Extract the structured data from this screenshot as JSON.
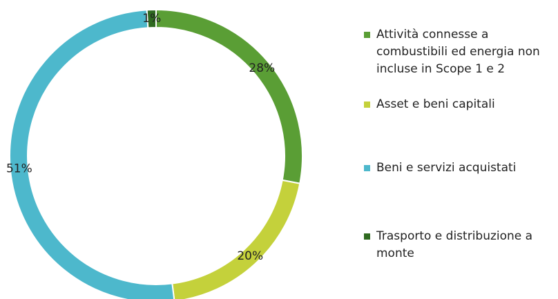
{
  "chart_data": {
    "type": "donut",
    "categories": [
      "Attività connesse a combustibili ed energia non incluse in Scope 1 e 2",
      "Asset e beni capitali",
      "Beni e servizi acquistati",
      "Trasporto e distribuzione a monte"
    ],
    "values": [
      28,
      20,
      51,
      1
    ],
    "value_labels": [
      "28%",
      "20%",
      "51%",
      "1%"
    ],
    "colors": [
      "#5a9e35",
      "#c4d13b",
      "#4db8cc",
      "#2f6a20"
    ],
    "legend": "right"
  }
}
